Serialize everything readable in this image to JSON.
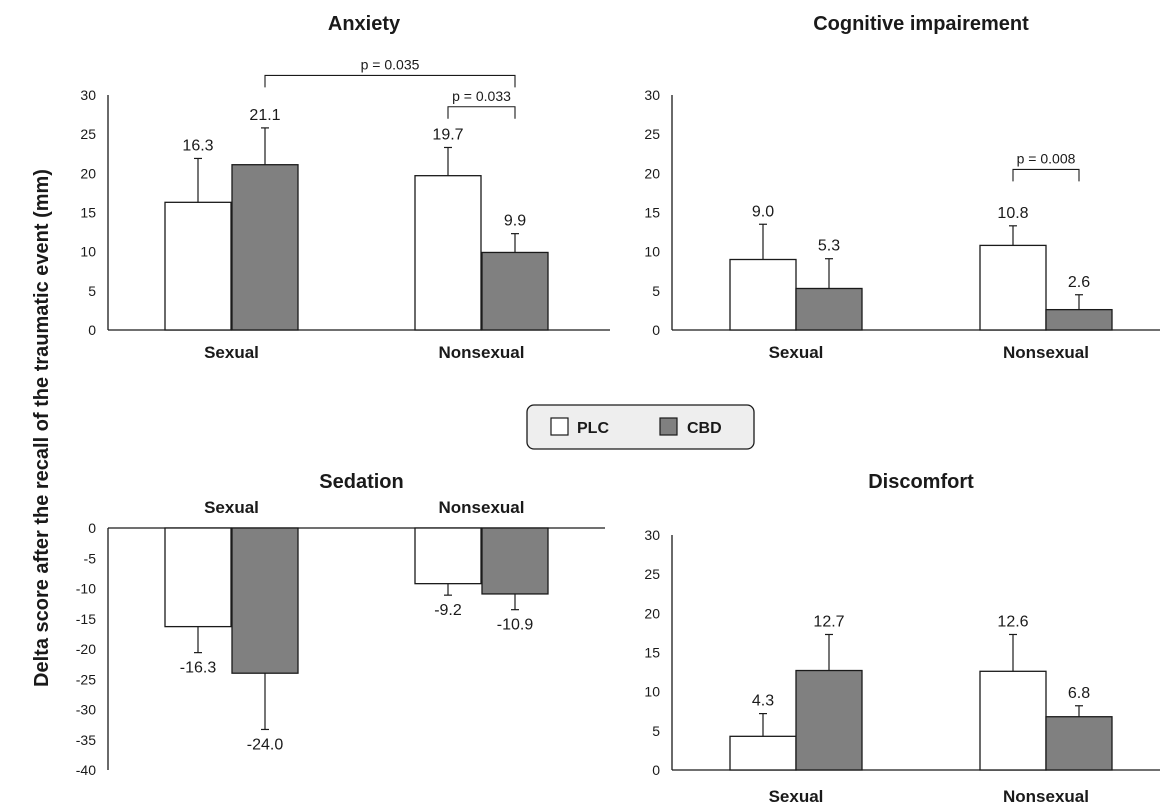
{
  "y_axis_label": "Delta score after the recall of the traumatic event (mm)",
  "legend": {
    "items": [
      {
        "label": "PLC",
        "color": "#ffffff"
      },
      {
        "label": "CBD",
        "color": "#808080"
      }
    ]
  },
  "chart_data": [
    {
      "type": "bar",
      "title": "Anxiety",
      "categories": [
        "Sexual",
        "Nonsexual"
      ],
      "series": [
        {
          "name": "PLC",
          "values": [
            16.3,
            19.7
          ],
          "errors": [
            5.6,
            3.6
          ],
          "labels": [
            "16.3",
            "19.7"
          ]
        },
        {
          "name": "CBD",
          "values": [
            21.1,
            9.9
          ],
          "errors": [
            4.7,
            2.4
          ],
          "labels": [
            "21.1",
            "9.9"
          ]
        }
      ],
      "ylim": [
        0,
        30
      ],
      "yticks": [
        0,
        5,
        10,
        15,
        20,
        25,
        30
      ],
      "annotations": [
        {
          "text": "p = 0.035",
          "from": [
            0,
            1
          ],
          "to": [
            1,
            1
          ],
          "level": 32.5
        },
        {
          "text": "p = 0.033",
          "from": [
            1,
            0
          ],
          "to": [
            1,
            1
          ],
          "level": 28.5
        }
      ]
    },
    {
      "type": "bar",
      "title": "Cognitive impairement",
      "categories": [
        "Sexual",
        "Nonsexual"
      ],
      "series": [
        {
          "name": "PLC",
          "values": [
            9.0,
            10.8
          ],
          "errors": [
            4.5,
            2.5
          ],
          "labels": [
            "9.0",
            "10.8"
          ]
        },
        {
          "name": "CBD",
          "values": [
            5.3,
            2.6
          ],
          "errors": [
            3.8,
            1.9
          ],
          "labels": [
            "5.3",
            "2.6"
          ]
        }
      ],
      "ylim": [
        0,
        30
      ],
      "yticks": [
        0,
        5,
        10,
        15,
        20,
        25,
        30
      ],
      "annotations": [
        {
          "text": "p = 0.008",
          "from": [
            1,
            0
          ],
          "to": [
            1,
            1
          ],
          "level": 20.5
        }
      ]
    },
    {
      "type": "bar",
      "title": "Sedation",
      "categories": [
        "Sexual",
        "Nonsexual"
      ],
      "series": [
        {
          "name": "PLC",
          "values": [
            -16.3,
            -9.2
          ],
          "errors": [
            4.3,
            1.9
          ],
          "labels": [
            "-16.3",
            "-9.2"
          ]
        },
        {
          "name": "CBD",
          "values": [
            -24.0,
            -10.9
          ],
          "errors": [
            9.3,
            2.6
          ],
          "labels": [
            "-24.0",
            "-10.9"
          ]
        }
      ],
      "ylim": [
        -40,
        0
      ],
      "yticks": [
        0,
        -5,
        -10,
        -15,
        -20,
        -25,
        -30,
        -35,
        -40
      ],
      "annotations": []
    },
    {
      "type": "bar",
      "title": "Discomfort",
      "categories": [
        "Sexual",
        "Nonsexual"
      ],
      "series": [
        {
          "name": "PLC",
          "values": [
            4.3,
            12.6
          ],
          "errors": [
            2.9,
            4.7
          ],
          "labels": [
            "4.3",
            "12.6"
          ]
        },
        {
          "name": "CBD",
          "values": [
            12.7,
            6.8
          ],
          "errors": [
            4.6,
            1.4
          ],
          "labels": [
            "12.7",
            "6.8"
          ]
        }
      ],
      "ylim": [
        0,
        30
      ],
      "yticks": [
        0,
        5,
        10,
        15,
        20,
        25,
        30
      ],
      "annotations": []
    }
  ]
}
